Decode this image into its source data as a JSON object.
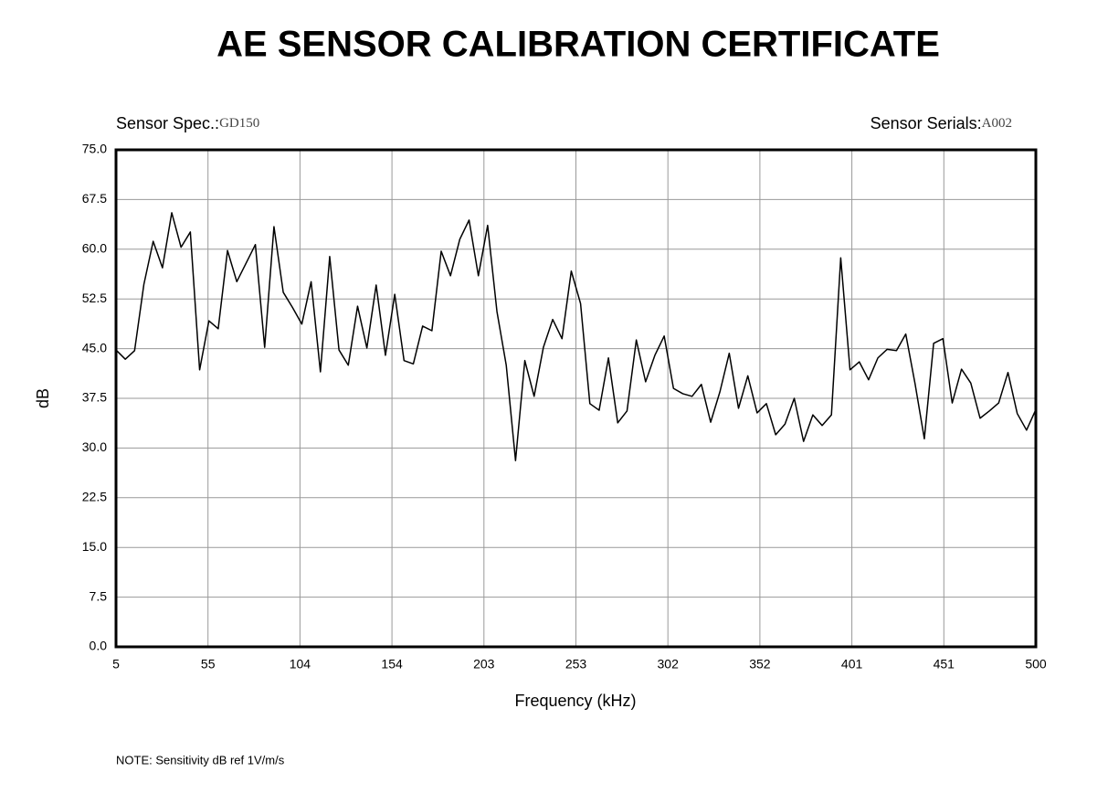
{
  "chart_data": {
    "type": "line",
    "title": "AE SENSOR CALIBRATION CERTIFICATE",
    "spec_label": "Sensor Spec.:",
    "spec_value": "GD150",
    "serial_label": "Sensor Serials:",
    "serial_value": "A002",
    "ylabel": "dB",
    "xlabel": "Frequency (kHz)",
    "note": "NOTE:  Sensitivity dB ref 1V/m/s",
    "xlim": [
      5,
      500
    ],
    "xticks": [
      5,
      {
        "value": 54.5,
        "label": "55"
      },
      104,
      {
        "value": 153.5,
        "label": "154"
      },
      203,
      {
        "value": 252.5,
        "label": "253"
      },
      302,
      {
        "value": 351.5,
        "label": "352"
      },
      401,
      {
        "value": 450.5,
        "label": "451"
      },
      500
    ],
    "ylim": [
      0,
      75
    ],
    "yticks": [
      {
        "value": 0,
        "label": "0.0"
      },
      {
        "value": 7.5,
        "label": "7.5"
      },
      {
        "value": 15,
        "label": "15.0"
      },
      {
        "value": 22.5,
        "label": "22.5"
      },
      {
        "value": 30,
        "label": "30.0"
      },
      {
        "value": 37.5,
        "label": "37.5"
      },
      {
        "value": 45,
        "label": "45.0"
      },
      {
        "value": 52.5,
        "label": "52.5"
      },
      {
        "value": 60,
        "label": "60.0"
      },
      {
        "value": 67.5,
        "label": "67.5"
      },
      {
        "value": 75,
        "label": "75.0"
      }
    ],
    "grid": true,
    "x": [
      5,
      10,
      15,
      20,
      25,
      30,
      35,
      40,
      45,
      50,
      55,
      60,
      65,
      70,
      75,
      80,
      85,
      90,
      95,
      100,
      105,
      110,
      115,
      120,
      125,
      130,
      135,
      140,
      145,
      150,
      155,
      160,
      165,
      170,
      175,
      180,
      185,
      190,
      195,
      200,
      205,
      210,
      215,
      220,
      225,
      230,
      235,
      240,
      245,
      250,
      255,
      260,
      265,
      270,
      275,
      280,
      285,
      290,
      295,
      300,
      305,
      310,
      315,
      320,
      325,
      330,
      335,
      340,
      345,
      350,
      355,
      360,
      365,
      370,
      375,
      380,
      385,
      390,
      395,
      400,
      405,
      410,
      415,
      420,
      425,
      430,
      435,
      440,
      445,
      450,
      455,
      460,
      465,
      470,
      475,
      480,
      485,
      490,
      495,
      500
    ],
    "series": [
      {
        "color": "#000000",
        "values": [
          44.8,
          43.4,
          44.7,
          54.7,
          61.2,
          57.2,
          65.5,
          60.3,
          62.6,
          41.8,
          49.2,
          48.0,
          59.8,
          55.1,
          57.9,
          60.7,
          45.2,
          63.4,
          53.5,
          51.2,
          48.7,
          55.1,
          41.5,
          58.9,
          44.8,
          42.5,
          51.4,
          45.1,
          54.6,
          44.0,
          53.2,
          43.2,
          42.7,
          48.4,
          47.7,
          59.7,
          56.0,
          61.5,
          64.4,
          56.0,
          63.6,
          50.6,
          42.5,
          28.1,
          43.2,
          37.8,
          45.2,
          49.4,
          46.5,
          56.7,
          51.8,
          36.7,
          35.7,
          43.6,
          33.8,
          35.6,
          46.3,
          40.0,
          44.0,
          46.9,
          39.0,
          38.2,
          37.8,
          39.6,
          33.9,
          38.5,
          44.3,
          36.0,
          40.9,
          35.3,
          36.7,
          32.0,
          33.6,
          37.5,
          31.0,
          35.0,
          33.4,
          35.0,
          58.7,
          41.8,
          43.0,
          40.3,
          43.6,
          44.9,
          44.7,
          47.2,
          39.7,
          31.4,
          45.8,
          46.5,
          36.8,
          41.9,
          39.8,
          34.5,
          35.6,
          36.8,
          41.4,
          35.2,
          32.7,
          35.8
        ]
      }
    ]
  }
}
